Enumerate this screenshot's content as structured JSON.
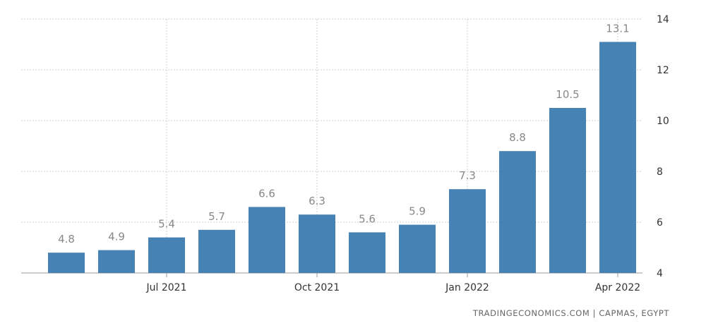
{
  "chart_data": {
    "type": "bar",
    "categories": [
      "May 2021",
      "Jun 2021",
      "Jul 2021",
      "Aug 2021",
      "Sep 2021",
      "Oct 2021",
      "Nov 2021",
      "Dec 2021",
      "Jan 2022",
      "Feb 2022",
      "Mar 2022",
      "Apr 2022"
    ],
    "values": [
      4.8,
      4.9,
      5.4,
      5.7,
      6.6,
      6.3,
      5.6,
      5.9,
      7.3,
      8.8,
      10.5,
      13.1
    ],
    "value_labels": [
      "4.8",
      "4.9",
      "5.4",
      "5.7",
      "6.6",
      "6.3",
      "5.6",
      "5.9",
      "7.3",
      "8.8",
      "10.5",
      "13.1"
    ],
    "x_ticks": [
      {
        "category": "Jul 2021",
        "label": "Jul 2021"
      },
      {
        "category": "Oct 2021",
        "label": "Oct 2021"
      },
      {
        "category": "Jan 2022",
        "label": "Jan 2022"
      },
      {
        "category": "Apr 2022",
        "label": "Apr 2022"
      }
    ],
    "y_ticks": [
      4,
      6,
      8,
      10,
      12,
      14
    ],
    "ylim": [
      4,
      14
    ],
    "title": "",
    "xlabel": "",
    "ylabel": "",
    "grid": true,
    "bar_color": "#4682b4",
    "y_axis_side": "right"
  },
  "source": "TRADINGECONOMICS.COM  |  CAPMAS, EGYPT"
}
